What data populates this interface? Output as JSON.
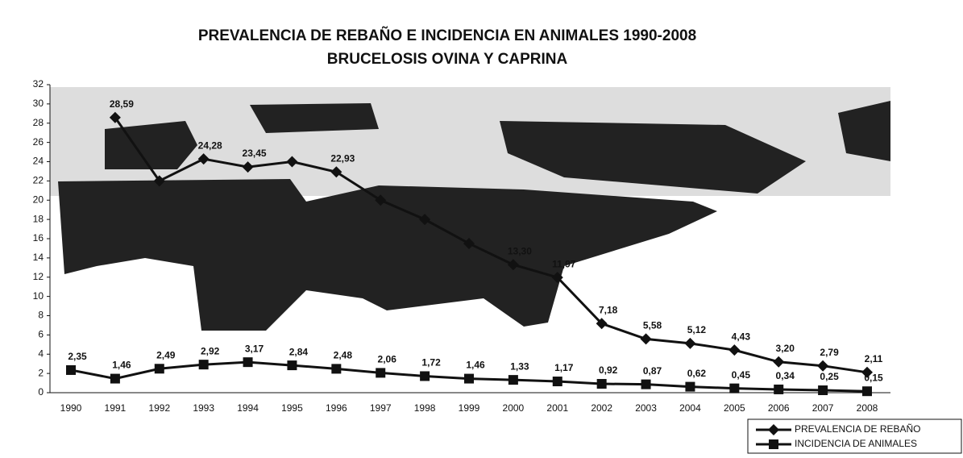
{
  "chart_data": {
    "type": "line",
    "title": "PREVALENCIA DE REBAÑO E INCIDENCIA EN ANIMALES 1990-2008",
    "subtitle": "BRUCELOSIS OVINA Y CAPRINA",
    "categories": [
      "1990",
      "1991",
      "1992",
      "1993",
      "1994",
      "1995",
      "1996",
      "1997",
      "1998",
      "1999",
      "2000",
      "2001",
      "2002",
      "2003",
      "2004",
      "2005",
      "2006",
      "2007",
      "2008"
    ],
    "series": [
      {
        "name": "PREVALENCIA DE REBAÑO",
        "color": "#111111",
        "marker": "diamond",
        "values": [
          null,
          28.59,
          22,
          24.28,
          23.45,
          24,
          22.93,
          20,
          18,
          15.5,
          13.3,
          11.97,
          7.18,
          5.58,
          5.12,
          4.43,
          3.2,
          2.79,
          2.11
        ],
        "value_labels": [
          null,
          "28,59",
          null,
          "24,28",
          "23,45",
          null,
          "22,93",
          null,
          null,
          null,
          "13,30",
          "11,97",
          "7,18",
          "5,58",
          "5,12",
          "4,43",
          "3,20",
          "2,79",
          "2,11"
        ]
      },
      {
        "name": "INCIDENCIA DE ANIMALES",
        "color": "#111111",
        "marker": "square",
        "values": [
          2.35,
          1.46,
          2.49,
          2.92,
          3.17,
          2.84,
          2.48,
          2.06,
          1.72,
          1.46,
          1.33,
          1.17,
          0.92,
          0.87,
          0.62,
          0.45,
          0.34,
          0.25,
          0.15
        ],
        "value_labels": [
          "2,35",
          "1,46",
          "2,49",
          "2,92",
          "3,17",
          "2,84",
          "2,48",
          "2,06",
          "1,72",
          "1,46",
          "1,33",
          "1,17",
          "0,92",
          "0,87",
          "0,62",
          "0,45",
          "0,34",
          "0,25",
          "0,15"
        ]
      }
    ],
    "ylim": [
      0,
      32
    ],
    "yticks": [
      0,
      2,
      4,
      6,
      8,
      10,
      12,
      14,
      16,
      18,
      20,
      22,
      24,
      26,
      28,
      30,
      32
    ],
    "grid": false,
    "legend": "bottom-right"
  }
}
